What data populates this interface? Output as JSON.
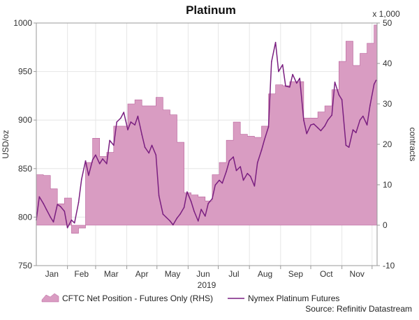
{
  "chart_data": {
    "type": "area",
    "title": "Platinum",
    "xlabel": "2019",
    "ylabel_left": "USD/oz",
    "ylabel_right": "contracts",
    "right_multiplier": "x 1,000",
    "source": "Source: Refinitiv Datastream",
    "ylim_left": [
      750,
      1000
    ],
    "ylim_right": [
      -10,
      50
    ],
    "yticks_left": [
      750,
      800,
      850,
      900,
      950,
      1000
    ],
    "yticks_right": [
      -10,
      0,
      10,
      20,
      30,
      40,
      50
    ],
    "x_range": [
      "2019-01-01",
      "2019-12-06"
    ],
    "month_labels": [
      "Jan",
      "Feb",
      "Mar",
      "Apr",
      "May",
      "Jun",
      "Jul",
      "Aug",
      "Sep",
      "Oct",
      "Nov"
    ],
    "grid": true,
    "legend_position": "bottom",
    "colors": {
      "area": "#d99cc2",
      "area_edge": "#b8609a",
      "line": "#7a1f80",
      "grid": "#e6e6e6",
      "plot_border": "#999999"
    },
    "series": [
      {
        "name": "CFTC Net Position - Futures Only (RHS)",
        "type": "area",
        "axis": "right",
        "x": [
          "2019-01-01",
          "2019-01-08",
          "2019-01-15",
          "2019-01-22",
          "2019-01-29",
          "2019-02-05",
          "2019-02-12",
          "2019-02-19",
          "2019-02-26",
          "2019-03-05",
          "2019-03-12",
          "2019-03-19",
          "2019-03-26",
          "2019-04-02",
          "2019-04-09",
          "2019-04-16",
          "2019-04-23",
          "2019-04-30",
          "2019-05-07",
          "2019-05-14",
          "2019-05-21",
          "2019-05-28",
          "2019-06-04",
          "2019-06-11",
          "2019-06-18",
          "2019-06-25",
          "2019-07-02",
          "2019-07-09",
          "2019-07-16",
          "2019-07-23",
          "2019-07-30",
          "2019-08-06",
          "2019-08-13",
          "2019-08-20",
          "2019-08-27",
          "2019-09-03",
          "2019-09-10",
          "2019-09-17",
          "2019-09-24",
          "2019-10-01",
          "2019-10-08",
          "2019-10-15",
          "2019-10-22",
          "2019-10-29",
          "2019-11-05",
          "2019-11-12",
          "2019-11-19",
          "2019-11-26",
          "2019-12-03"
        ],
        "values": [
          12.5,
          12.3,
          9,
          5.3,
          6.7,
          -2,
          -0.7,
          15.5,
          21.5,
          17,
          18,
          24.5,
          24.5,
          30,
          31,
          29.5,
          29.5,
          31.6,
          28.5,
          27.3,
          20.5,
          8,
          7.5,
          7,
          6,
          12.5,
          15.5,
          21,
          25.5,
          22.5,
          22,
          21.7,
          24.5,
          32.5,
          34.7,
          34.5,
          35.5,
          35.5,
          26.5,
          26.5,
          28,
          29.5,
          33.5,
          40.5,
          45.5,
          39.5,
          42.5,
          45,
          49.5
        ]
      },
      {
        "name": "Nymex Platinum Futures",
        "type": "line",
        "axis": "left",
        "x": [
          "2019-01-01",
          "2019-01-04",
          "2019-01-08",
          "2019-01-11",
          "2019-01-15",
          "2019-01-18",
          "2019-01-22",
          "2019-01-25",
          "2019-01-29",
          "2019-02-01",
          "2019-02-05",
          "2019-02-08",
          "2019-02-12",
          "2019-02-15",
          "2019-02-19",
          "2019-02-22",
          "2019-02-26",
          "2019-03-01",
          "2019-03-05",
          "2019-03-08",
          "2019-03-12",
          "2019-03-15",
          "2019-03-19",
          "2019-03-22",
          "2019-03-26",
          "2019-03-29",
          "2019-04-02",
          "2019-04-05",
          "2019-04-09",
          "2019-04-12",
          "2019-04-16",
          "2019-04-19",
          "2019-04-23",
          "2019-04-26",
          "2019-04-30",
          "2019-05-03",
          "2019-05-07",
          "2019-05-10",
          "2019-05-14",
          "2019-05-17",
          "2019-05-21",
          "2019-05-24",
          "2019-05-28",
          "2019-05-31",
          "2019-06-04",
          "2019-06-07",
          "2019-06-11",
          "2019-06-14",
          "2019-06-18",
          "2019-06-21",
          "2019-06-25",
          "2019-06-28",
          "2019-07-02",
          "2019-07-05",
          "2019-07-09",
          "2019-07-12",
          "2019-07-16",
          "2019-07-19",
          "2019-07-23",
          "2019-07-26",
          "2019-07-30",
          "2019-08-02",
          "2019-08-06",
          "2019-08-09",
          "2019-08-13",
          "2019-08-16",
          "2019-08-20",
          "2019-08-23",
          "2019-08-27",
          "2019-08-30",
          "2019-09-03",
          "2019-09-06",
          "2019-09-10",
          "2019-09-13",
          "2019-09-17",
          "2019-09-20",
          "2019-09-24",
          "2019-09-27",
          "2019-10-01",
          "2019-10-04",
          "2019-10-08",
          "2019-10-11",
          "2019-10-15",
          "2019-10-18",
          "2019-10-22",
          "2019-10-25",
          "2019-10-29",
          "2019-11-01",
          "2019-11-05",
          "2019-11-08",
          "2019-11-12",
          "2019-11-15",
          "2019-11-19",
          "2019-11-22",
          "2019-11-26",
          "2019-11-29",
          "2019-12-03",
          "2019-12-05"
        ],
        "values": [
          797,
          821,
          814,
          808,
          800,
          795,
          813,
          811,
          806,
          789,
          797,
          794,
          815,
          839,
          858,
          843,
          859,
          864,
          855,
          860,
          855,
          879,
          874,
          898,
          902,
          908,
          890,
          898,
          895,
          904,
          885,
          872,
          866,
          874,
          864,
          822,
          803,
          800,
          796,
          792,
          799,
          803,
          810,
          826,
          816,
          806,
          796,
          808,
          801,
          814,
          819,
          833,
          838,
          835,
          847,
          858,
          862,
          848,
          852,
          838,
          845,
          842,
          832,
          856,
          869,
          880,
          893,
          960,
          980,
          950,
          957,
          935,
          934,
          947,
          938,
          943,
          900,
          886,
          895,
          896,
          892,
          889,
          894,
          900,
          905,
          939,
          926,
          921,
          874,
          872,
          890,
          887,
          900,
          904,
          895,
          915,
          937,
          941
        ]
      }
    ]
  }
}
